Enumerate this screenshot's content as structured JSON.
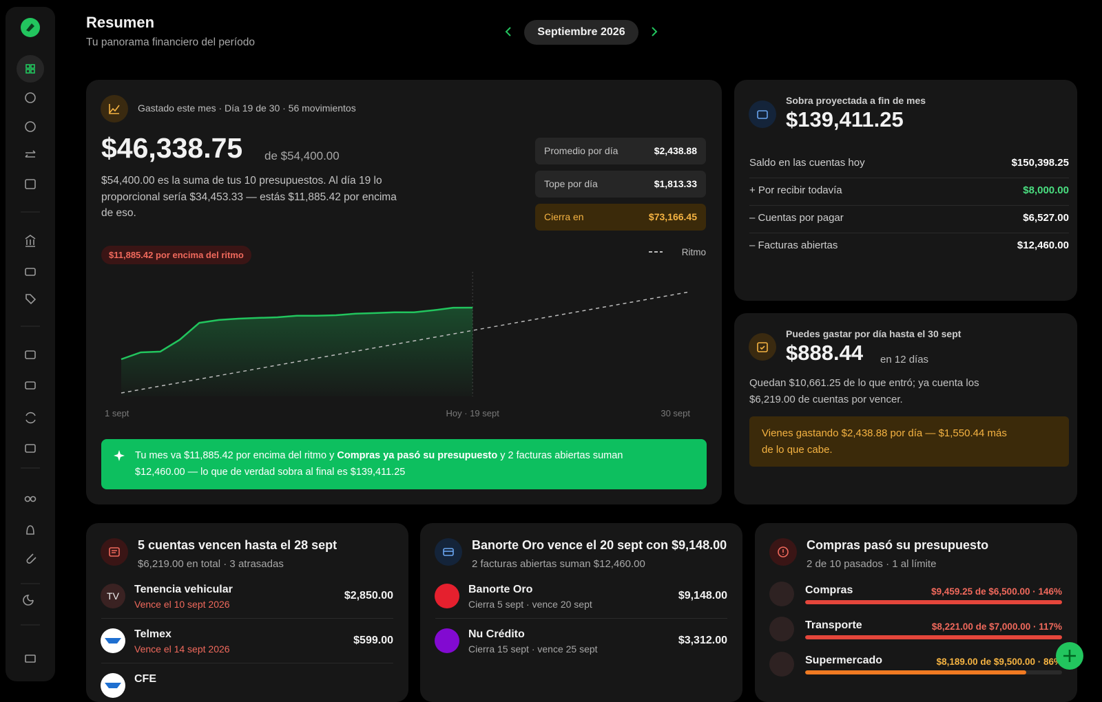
{
  "header": {
    "title": "Resumen",
    "subtitle": "Tu panorama financiero del período",
    "period": "Septiembre 2026"
  },
  "spent": {
    "label": "Gastado este mes · Día 19 de 30 · 56 movimientos",
    "amount": "$46,338.75",
    "of": "de $54,400.00",
    "description": "$54,400.00 es la suma de tus 10 presupuestos. Al día 19 lo proporcional sería $34,453.33 — estás $11,885.42 por encima de eso.",
    "stats": [
      {
        "label": "Promedio por día",
        "value": "$2,438.88",
        "highlight": false
      },
      {
        "label": "Tope por día",
        "value": "$1,813.33",
        "highlight": false
      },
      {
        "label": "Cierra en",
        "value": "$73,166.45",
        "highlight": true
      }
    ],
    "badge": "$11,885.42 por encima del ritmo",
    "insight": [
      {
        "text": "Tu mes va $11,885.42 por encima del ritmo y ",
        "bold": false
      },
      {
        "text": "Compras ya pasó su presupuesto",
        "bold": true
      },
      {
        "text": " y 2 facturas abiertas suman $12,460.00 — lo que de verdad sobra al final es $139,411.25",
        "bold": false
      }
    ]
  },
  "chart_data": {
    "type": "line",
    "xlim": [
      1,
      30
    ],
    "ylim": [
      0,
      60000
    ],
    "xticks": [
      {
        "value": 1,
        "label": "1 sept"
      },
      {
        "value": 19,
        "label": "Hoy · 19 sept"
      },
      {
        "value": 30,
        "label": "30 sept"
      }
    ],
    "legend": "top-right",
    "series": [
      {
        "color": "#22c55e",
        "area": true,
        "dashed": false,
        "x": [
          1,
          2,
          3,
          4,
          5,
          6,
          7,
          8,
          9,
          10,
          11,
          12,
          13,
          14,
          15,
          16,
          17,
          18,
          19
        ],
        "values": [
          19400,
          23000,
          23400,
          29600,
          38400,
          39900,
          40600,
          41000,
          41300,
          42100,
          42100,
          42400,
          43200,
          43500,
          43900,
          43900,
          45000,
          46300,
          46338.75
        ]
      },
      {
        "name": "Ritmo",
        "color": "#bdbdbd",
        "area": false,
        "dashed": true,
        "x": [
          1,
          30
        ],
        "values": [
          1813.33,
          54400
        ]
      }
    ]
  },
  "projection": {
    "label": "Sobra proyectada a fin de mes",
    "amount": "$139,411.25",
    "rows": [
      {
        "label": "Saldo en las cuentas hoy",
        "value": "$150,398.25",
        "positive": false
      },
      {
        "label": "+ Por recibir todavía",
        "value": "$8,000.00",
        "positive": true
      },
      {
        "label": "– Cuentas por pagar",
        "value": "$6,527.00",
        "positive": false
      },
      {
        "label": "– Facturas abiertas",
        "value": "$12,460.00",
        "positive": false
      }
    ]
  },
  "daily": {
    "label": "Puedes gastar por día hasta el 30 sept",
    "amount": "$888.44",
    "suffix": "en 12 días",
    "description": "Quedan $10,661.25 de lo que entró; ya cuenta los $6,219.00 de cuentas por vencer.",
    "warning": "Vienes gastando $2,438.88 por día — $1,550.44 más de lo que cabe."
  },
  "bills": {
    "title": "5 cuentas vencen hasta el 28 sept",
    "subtitle": "$6,219.00 en total · 3 atrasadas",
    "items": [
      {
        "initials": "TV",
        "name": "Tenencia vehicular",
        "due": "Vence el 10 sept 2026",
        "amount": "$2,850.00"
      },
      {
        "name": "Telmex",
        "due": "Vence el 14 sept 2026",
        "amount": "$599.00"
      },
      {
        "name": "CFE"
      }
    ]
  },
  "cards": {
    "title": "Banorte Oro vence el 20 sept con $9,148.00",
    "subtitle": "2 facturas abiertas suman $12,460.00",
    "items": [
      {
        "name": "Banorte Oro",
        "detail": "Cierra 5 sept · vence 20 sept",
        "amount": "$9,148.00",
        "color": "#e5202e"
      },
      {
        "name": "Nu Crédito",
        "detail": "Cierra 15 sept · vence 25 sept",
        "amount": "$3,312.00",
        "color": "#820ad1"
      }
    ]
  },
  "budgets": {
    "title": "Compras pasó su presupuesto",
    "subtitle": "2 de 10 pasados · 1 al límite",
    "items": [
      {
        "name": "Compras",
        "detail": "$9,459.25 de $6,500.00 · 146%",
        "percent": 146,
        "color": "#e5463b",
        "text_color": "#f0695c"
      },
      {
        "name": "Transporte",
        "detail": "$8,221.00 de $7,000.00 · 117%",
        "percent": 117,
        "color": "#e5463b",
        "text_color": "#f0695c"
      },
      {
        "name": "Supermercado",
        "detail": "$8,189.00 de $9,500.00 · 86%",
        "percent": 86,
        "color": "#f07a22",
        "text_color": "#f5b342"
      }
    ]
  }
}
